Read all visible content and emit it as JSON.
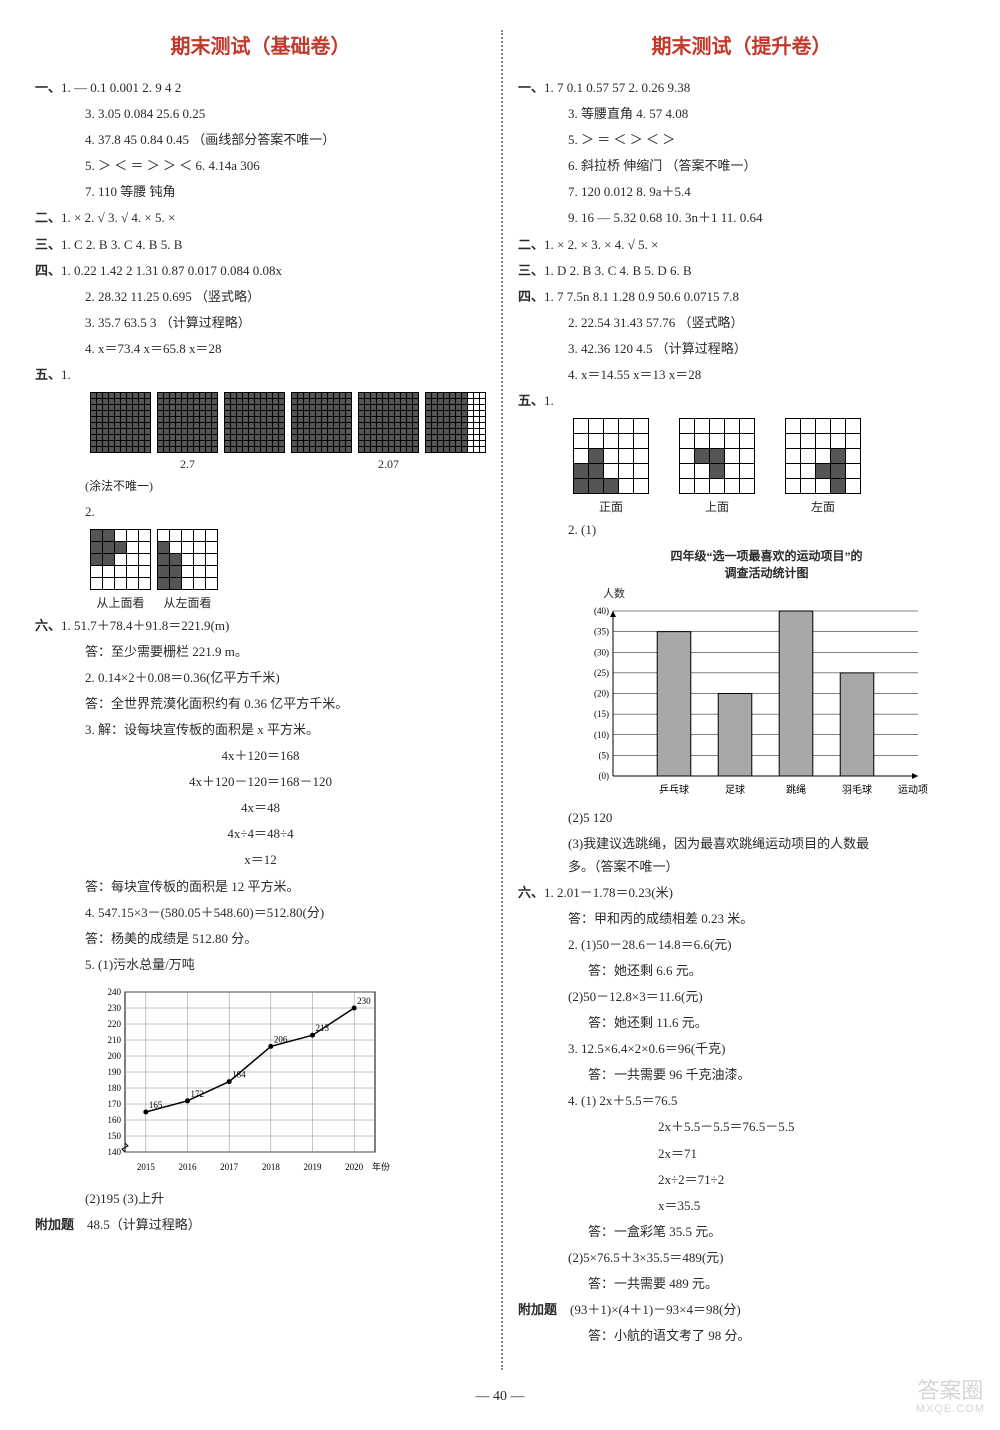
{
  "page_number": "— 40 —",
  "watermark": {
    "main": "答案圈",
    "url": "MXQE.COM"
  },
  "left": {
    "title": "期末测试（基础卷）",
    "sec1": {
      "label": "一、",
      "items": [
        "1.  —   0.1   0.001   2.  9   4   2",
        "3.  3.05   0.084   25.6   0.25",
        "4.  37.8   45   0.84   0.45  （画线部分答案不唯一）",
        "5.  ＞  ＜  ＝  ＞  ＞  ＜   6.  4.14a   306",
        "7.  110   等腰   钝角"
      ]
    },
    "sec2": {
      "label": "二、",
      "text": "1. ×   2. √   3. √   4. ×   5. ×"
    },
    "sec3": {
      "label": "三、",
      "text": "1. C   2. B   3. C   4. B   5. B"
    },
    "sec4": {
      "label": "四、",
      "items": [
        "1.  0.22   1.42   2   1.31   0.87   0.017   0.084   0.08x",
        "2.  28.32   11.25   0.695  （竖式略）",
        "3.  35.7   63.5   3  （计算过程略）",
        "4.  x＝73.4   x＝65.8   x＝28"
      ]
    },
    "sec5": {
      "label": "五、",
      "item1": {
        "grids": [
          {
            "cols": 10,
            "rows": 10,
            "label": "2.7",
            "fills": "full3"
          },
          {
            "cols": 10,
            "rows": 10,
            "label": "",
            "fills": "p07a"
          },
          {
            "cols": 10,
            "rows": 10,
            "label": "2.07",
            "fills": "p07b"
          },
          {
            "cols": 10,
            "rows": 10,
            "label": "",
            "fills": "none"
          }
        ],
        "note": "(涂法不唯一)"
      },
      "item2": {
        "grids": [
          {
            "cols": 5,
            "rows": 5,
            "label": "从上面看",
            "pattern": "top"
          },
          {
            "cols": 5,
            "rows": 5,
            "label": "从左面看",
            "pattern": "left"
          }
        ]
      }
    },
    "sec6": {
      "label": "六、",
      "q1": {
        "expr": "1.  51.7＋78.4＋91.8＝221.9(m)",
        "ans": "答：至少需要栅栏 221.9 m。"
      },
      "q2": {
        "expr": "2.  0.14×2＋0.08＝0.36(亿平方千米)",
        "ans": "答：全世界荒漠化面积约有 0.36 亿平方千米。"
      },
      "q3": {
        "head": "3.  解：设每块宣传板的面积是 x 平方米。",
        "steps": [
          "4x＋120＝168",
          "4x＋120－120＝168－120",
          "4x＝48",
          "4x÷4＝48÷4",
          "x＝12"
        ],
        "ans": "答：每块宣传板的面积是 12 平方米。"
      },
      "q4": {
        "expr": "4.  547.15×3－(580.05＋548.60)＝512.80(分)",
        "ans": "答：杨美的成绩是 512.80 分。"
      },
      "q5": {
        "head": "5.  (1)污水总量/万吨",
        "chart": {
          "type": "line",
          "x_labels": [
            "2015",
            "2016",
            "2017",
            "2018",
            "2019",
            "2020"
          ],
          "x_axis": "年份",
          "y_min": 140,
          "y_max": 240,
          "y_step": 10,
          "values": [
            165,
            172,
            184,
            206,
            213,
            230
          ],
          "line_color": "#000000",
          "grid_color": "#888888",
          "background": "#ffffff",
          "point_labels": [
            "165",
            "172",
            "184",
            "206",
            "213",
            "230"
          ]
        },
        "sub2": "(2)195   (3)上升"
      }
    },
    "extra": {
      "label": "附加题",
      "text": "48.5（计算过程略）"
    }
  },
  "right": {
    "title": "期末测试（提升卷）",
    "sec1": {
      "label": "一、",
      "items": [
        "1.  7   0.1   0.57   57   2.  0.26   9.38",
        "3.  等腰直角   4.  57   4.08",
        "5.  ＞   ＝   ＜   ＞   ＜   ＞",
        "6.  斜拉桥   伸缩门  （答案不唯一）",
        "7.  120   0.012   8.  9a＋5.4",
        "9.  16   —   5.32   0.68   10.  3n＋1   11.  0.64"
      ]
    },
    "sec2": {
      "label": "二、",
      "text": "1. ×   2. ×   3. ×   4. √   5. ×"
    },
    "sec3": {
      "label": "三、",
      "text": "1. D   2. B   3. C   4. B   5. D   6. B"
    },
    "sec4": {
      "label": "四、",
      "items": [
        "1.  7   7.5n   8.1   1.28   0.9   50.6   0.0715   7.8",
        "2.  22.54   31.43   57.76  （竖式略）",
        "3.  42.36   120   4.5  （计算过程略）",
        "4.  x＝14.55   x＝13   x＝28"
      ]
    },
    "sec5": {
      "label": "五、",
      "item1": {
        "grids": [
          {
            "cols": 5,
            "rows": 5,
            "label": "正面",
            "pattern": "front"
          },
          {
            "cols": 5,
            "rows": 5,
            "label": "上面",
            "pattern": "topR"
          },
          {
            "cols": 5,
            "rows": 5,
            "label": "左面",
            "pattern": "leftR"
          }
        ]
      },
      "item2": {
        "head": "2.  (1)",
        "chart": {
          "type": "bar",
          "title": "四年级“选一项最喜欢的运动项目”的\n调查活动统计图",
          "y_label": "人数",
          "x_labels": [
            "乒乓球",
            "足球",
            "跳绳",
            "羽毛球",
            "运动项目"
          ],
          "y_min": 0,
          "y_max": 40,
          "y_step": 5,
          "values": [
            35,
            20,
            40,
            25
          ],
          "bar_color": "#a8a8a8",
          "grid_color": "#000000",
          "background": "#ffffff",
          "bar_width": 0.55
        },
        "sub2": "(2)5   120",
        "sub3": "(3)我建议选跳绳，因为最喜欢跳绳运动项目的人数最\n多。（答案不唯一）"
      }
    },
    "sec6": {
      "label": "六、",
      "q1": {
        "expr": "1.  2.01－1.78＝0.23(米)",
        "ans": "答：甲和丙的成绩相差 0.23 米。"
      },
      "q2": {
        "a": "2.  (1)50－28.6－14.8＝6.6(元)",
        "a_ans": "答：她还剩 6.6 元。",
        "b": "(2)50－12.8×3＝11.6(元)",
        "b_ans": "答：她还剩 11.6 元。"
      },
      "q3": {
        "expr": "3.  12.5×6.4×2×0.6＝96(千克)",
        "ans": "答：一共需要 96 千克油漆。"
      },
      "q4": {
        "head": "4.  (1)      2x＋5.5＝76.5",
        "steps": [
          "2x＋5.5－5.5＝76.5－5.5",
          "2x＝71",
          "2x÷2＝71÷2",
          "x＝35.5"
        ],
        "ans1": "答：一盒彩笔 35.5 元。",
        "b": "(2)5×76.5＋3×35.5＝489(元)",
        "ans2": "答：一共需要 489 元。"
      }
    },
    "extra": {
      "label": "附加题",
      "expr": "(93＋1)×(4＋1)－93×4＝98(分)",
      "ans": "答：小航的语文考了 98 分。"
    }
  }
}
